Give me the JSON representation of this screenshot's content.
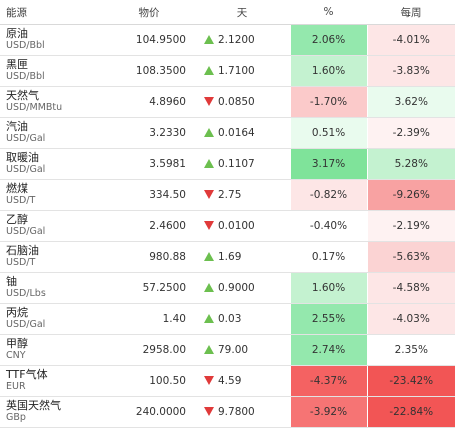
{
  "headers": {
    "name": "能源",
    "price": "物价",
    "day": "天",
    "pct": "%",
    "week": "每周"
  },
  "rows": [
    {
      "name": "原油",
      "unit": "USD/Bbl",
      "price": "104.9500",
      "change": "2.1200",
      "dir": "up",
      "pct": "2.06%",
      "pct_color": "#94e8ad",
      "week": "-4.01%",
      "week_color": "#fde6e6"
    },
    {
      "name": "黑匣",
      "unit": "USD/Bbl",
      "price": "108.3500",
      "change": "1.7100",
      "dir": "up",
      "pct": "1.60%",
      "pct_color": "#c4f2d0",
      "week": "-3.83%",
      "week_color": "#fde6e6"
    },
    {
      "name": "天然气",
      "unit": "USD/MMBtu",
      "price": "4.8960",
      "change": "0.0850",
      "dir": "down",
      "pct": "-1.70%",
      "pct_color": "#fbcaca",
      "week": "3.62%",
      "week_color": "#e9fbee"
    },
    {
      "name": "汽油",
      "unit": "USD/Gal",
      "price": "3.2330",
      "change": "0.0164",
      "dir": "up",
      "pct": "0.51%",
      "pct_color": "#e9fbee",
      "week": "-2.39%",
      "week_color": "#fef2f2"
    },
    {
      "name": "取暖油",
      "unit": "USD/Gal",
      "price": "3.5981",
      "change": "0.1107",
      "dir": "up",
      "pct": "3.17%",
      "pct_color": "#7fe39a",
      "week": "5.28%",
      "week_color": "#c4f2d0"
    },
    {
      "name": "燃煤",
      "unit": "USD/T",
      "price": "334.50",
      "change": "2.75",
      "dir": "down",
      "pct": "-0.82%",
      "pct_color": "#fde6e6",
      "week": "-9.26%",
      "week_color": "#f8a2a2"
    },
    {
      "name": "乙醇",
      "unit": "USD/Gal",
      "price": "2.4600",
      "change": "0.0100",
      "dir": "down",
      "pct": "-0.40%",
      "pct_color": "#ffffff",
      "week": "-2.19%",
      "week_color": "#fef2f2"
    },
    {
      "name": "石脑油",
      "unit": "USD/T",
      "price": "980.88",
      "change": "1.69",
      "dir": "up",
      "pct": "0.17%",
      "pct_color": "#ffffff",
      "week": "-5.63%",
      "week_color": "#fbd3d3"
    },
    {
      "name": "铀",
      "unit": "USD/Lbs",
      "price": "57.2500",
      "change": "0.9000",
      "dir": "up",
      "pct": "1.60%",
      "pct_color": "#c4f2d0",
      "week": "-4.58%",
      "week_color": "#fde6e6"
    },
    {
      "name": "丙烷",
      "unit": "USD/Gal",
      "price": "1.40",
      "change": "0.03",
      "dir": "up",
      "pct": "2.55%",
      "pct_color": "#94e8ad",
      "week": "-4.03%",
      "week_color": "#fde6e6"
    },
    {
      "name": "甲醇",
      "unit": "CNY",
      "price": "2958.00",
      "change": "79.00",
      "dir": "up",
      "pct": "2.74%",
      "pct_color": "#94e8ad",
      "week": "2.35%",
      "week_color": "#ffffff"
    },
    {
      "name": "TTF气体",
      "unit": "EUR",
      "price": "100.50",
      "change": "4.59",
      "dir": "down",
      "pct": "-4.37%",
      "pct_color": "#f46262",
      "week": "-23.42%",
      "week_color": "#f25555"
    },
    {
      "name": "英国天然气",
      "unit": "GBp",
      "price": "240.0000",
      "change": "9.7800",
      "dir": "down",
      "pct": "-3.92%",
      "pct_color": "#f67474",
      "week": "-22.84%",
      "week_color": "#f25555"
    }
  ]
}
